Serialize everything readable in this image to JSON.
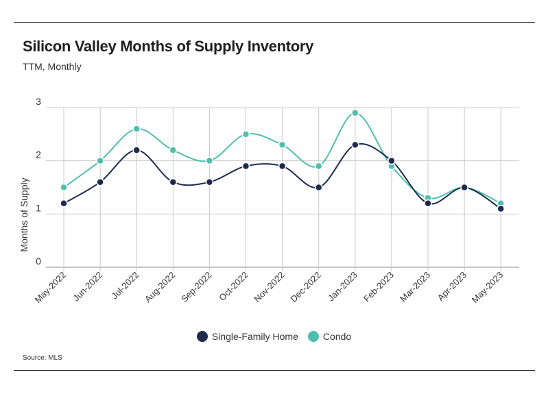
{
  "header": {
    "title": "Silicon Valley Months of Supply Inventory",
    "subtitle": "TTM, Monthly"
  },
  "footer": {
    "source": "Source:  MLS"
  },
  "colors": {
    "single_family": "#1c2a4f",
    "condo": "#4fbfad",
    "grid": "#c8c8c8",
    "axis": "#888888"
  },
  "chart_data": {
    "type": "line",
    "title": "Silicon Valley Months of Supply Inventory",
    "subtitle": "TTM, Monthly",
    "xlabel": "",
    "ylabel": "Months of Supply",
    "ylim": [
      0,
      3
    ],
    "yticks": [
      0,
      1,
      2,
      3
    ],
    "grid": true,
    "legend_position": "bottom",
    "categories": [
      "May-2022",
      "Jun-2022",
      "Jul-2022",
      "Aug-2022",
      "Sep-2022",
      "Oct-2022",
      "Nov-2022",
      "Dec-2022",
      "Jan-2023",
      "Feb-2023",
      "Mar-2023",
      "Apr-2023",
      "May-2023"
    ],
    "series": [
      {
        "name": "Single-Family Home",
        "color": "#1c2a4f",
        "values": [
          1.2,
          1.6,
          2.2,
          1.6,
          1.6,
          1.9,
          1.9,
          1.5,
          2.3,
          2.0,
          1.2,
          1.5,
          1.1
        ]
      },
      {
        "name": "Condo",
        "color": "#4fbfad",
        "values": [
          1.5,
          2.0,
          2.6,
          2.2,
          2.0,
          2.5,
          2.3,
          1.9,
          2.9,
          1.9,
          1.3,
          1.5,
          1.2
        ]
      }
    ]
  }
}
